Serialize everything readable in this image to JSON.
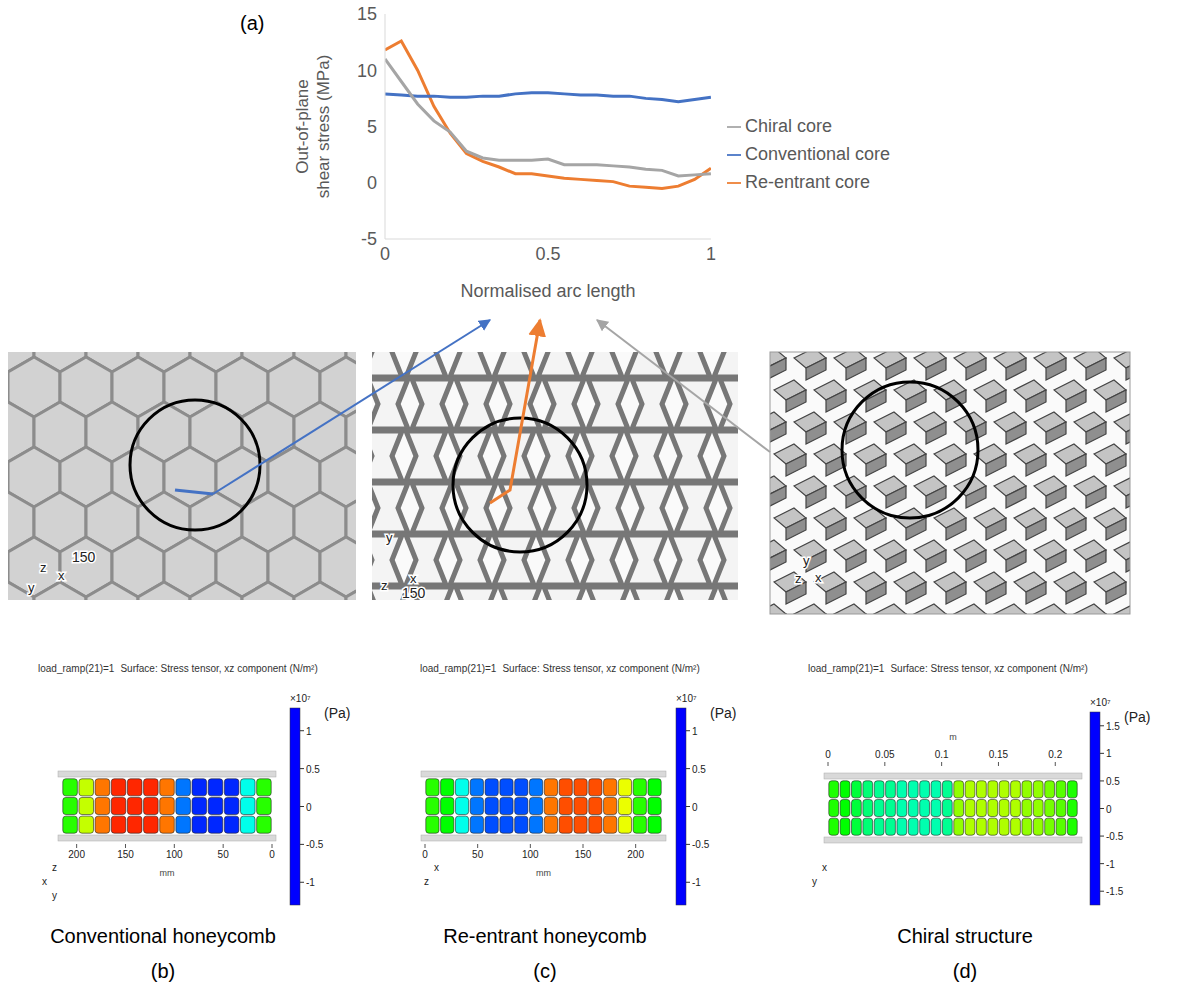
{
  "chart_data": {
    "type": "line",
    "panel_label": "(a)",
    "x_label": "Normalised arc length",
    "y_label": "Out-of-plane shear stress (MPa)",
    "x": [
      0,
      0.05,
      0.1,
      0.15,
      0.2,
      0.25,
      0.3,
      0.35,
      0.4,
      0.45,
      0.5,
      0.55,
      0.6,
      0.65,
      0.7,
      0.75,
      0.8,
      0.85,
      0.9,
      0.95,
      1
    ],
    "xlim": [
      0,
      1
    ],
    "xticks": [
      0,
      0.5,
      1
    ],
    "ylim": [
      -5,
      15
    ],
    "yticks": [
      -5,
      0,
      5,
      10,
      15
    ],
    "grid": false,
    "legend": "right",
    "series": [
      {
        "name": "Re-entrant core",
        "color": "#ed7d31",
        "values": [
          11.8,
          12.6,
          10.0,
          6.8,
          4.4,
          2.6,
          1.9,
          1.4,
          0.8,
          0.8,
          0.6,
          0.4,
          0.3,
          0.2,
          0.1,
          -0.3,
          -0.4,
          -0.5,
          -0.3,
          0.3,
          1.3
        ]
      },
      {
        "name": "Conventional core",
        "color": "#4472c4",
        "values": [
          7.9,
          7.8,
          7.7,
          7.7,
          7.6,
          7.6,
          7.7,
          7.7,
          7.9,
          8.0,
          8.0,
          7.9,
          7.8,
          7.8,
          7.7,
          7.7,
          7.5,
          7.4,
          7.2,
          7.4,
          7.6
        ]
      },
      {
        "name": "Chiral core",
        "color": "#a5a5a5",
        "values": [
          11.0,
          9.0,
          7.0,
          5.5,
          4.5,
          2.8,
          2.2,
          2.0,
          2.0,
          2.0,
          2.1,
          1.6,
          1.6,
          1.6,
          1.5,
          1.4,
          1.2,
          1.1,
          0.6,
          0.7,
          0.8
        ]
      }
    ]
  },
  "renders": [
    {
      "axis_labels": [
        "z",
        "y",
        "x"
      ],
      "ruler_label": "150"
    },
    {
      "axis_labels": [
        "y",
        "z",
        "x"
      ],
      "ruler_label": "150"
    },
    {
      "axis_labels": [
        "z",
        "x",
        "y"
      ]
    }
  ],
  "contour_plots": [
    {
      "caption": "Conventional honeycomb",
      "panel_label": "(b)",
      "header": "load_ramp(21)=1",
      "title": "Surface: Stress tensor, xz component (N/m²)",
      "colorbar": {
        "range": [
          -1.3,
          1.3
        ],
        "ticks": [
          -1,
          -0.5,
          0,
          0.5,
          1
        ],
        "unit": "×10⁷",
        "label": "(Pa)"
      },
      "axis": {
        "position": "bottom",
        "xlim": [
          215,
          0
        ],
        "xticks": [
          200,
          150,
          100,
          50,
          0
        ],
        "unit": "mm"
      },
      "axis_labels": [
        "x",
        "z",
        "y"
      ],
      "cells": [
        0.1,
        0.5,
        1.0,
        1.2,
        1.2,
        1.2,
        1.0,
        -1.0,
        -1.2,
        -1.2,
        -1.2,
        -0.6,
        0.1
      ]
    },
    {
      "caption": "Re-entrant honeycomb",
      "panel_label": "(c)",
      "header": "load_ramp(21)=1",
      "title": "Surface: Stress tensor, xz component (N/m²)",
      "colorbar": {
        "range": [
          -1.3,
          1.3
        ],
        "ticks": [
          -1,
          -0.5,
          0,
          0.5,
          1
        ],
        "unit": "×10⁷",
        "label": "(Pa)"
      },
      "axis": {
        "position": "bottom",
        "xlim": [
          0,
          225
        ],
        "xticks": [
          0,
          50,
          100,
          150,
          200
        ],
        "unit": "mm"
      },
      "axis_labels": [
        "z",
        "x"
      ],
      "cells": [
        0.1,
        0.0,
        -0.6,
        -1.0,
        -1.1,
        -1.1,
        -1.1,
        -1.0,
        1.0,
        1.1,
        1.1,
        1.1,
        1.0,
        0.6,
        0.1,
        0.0
      ]
    },
    {
      "caption": "Chiral structure",
      "panel_label": "(d)",
      "header": "load_ramp(21)=1",
      "title": "Surface: Stress tensor, xz component (N/m²)",
      "colorbar": {
        "range": [
          -1.75,
          1.75
        ],
        "ticks": [
          -1.5,
          -1,
          -0.5,
          0,
          0.5,
          1,
          1.5
        ],
        "unit": "×10⁷",
        "label": "(Pa)"
      },
      "axis": {
        "position": "top",
        "xlim": [
          0,
          0.22
        ],
        "xticks": [
          0,
          0.05,
          0.1,
          0.15,
          0.2
        ],
        "unit": "m"
      },
      "axis_labels": [
        "y",
        "x"
      ],
      "cells": [
        0.1,
        0,
        -0.2,
        -0.4,
        -0.5,
        -0.5,
        -0.6,
        -0.6,
        -0.6,
        -0.6,
        -0.5,
        0.5,
        0.6,
        0.6,
        0.6,
        0.6,
        0.6,
        0.5,
        0.5,
        0.4,
        0.3,
        0.1
      ]
    }
  ]
}
